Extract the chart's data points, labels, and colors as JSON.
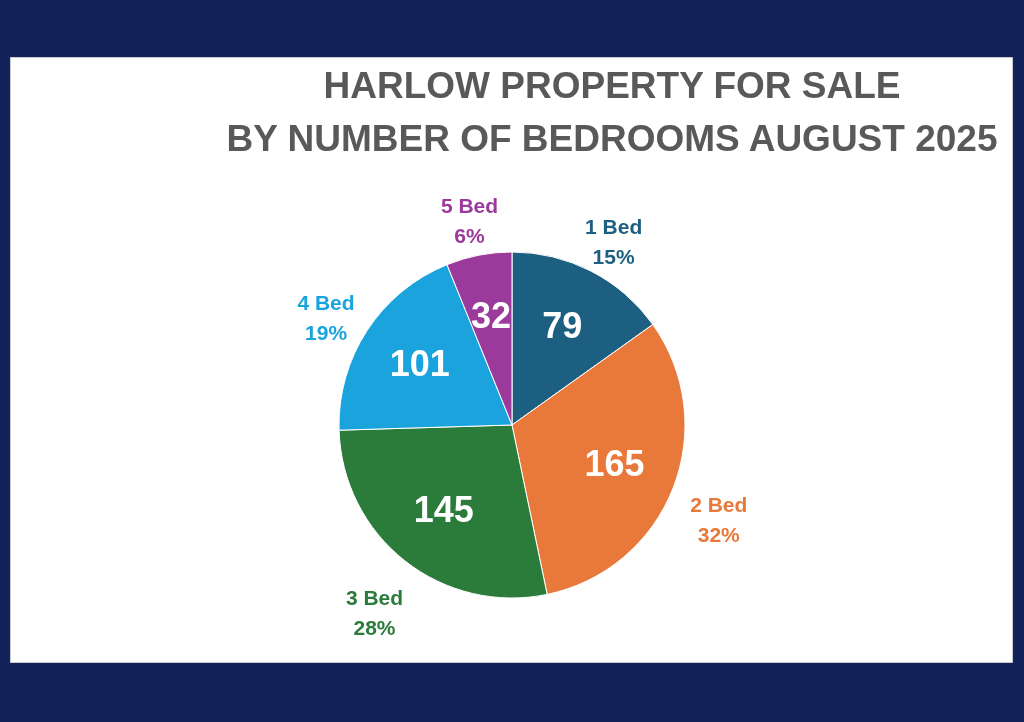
{
  "chart_data": {
    "type": "pie",
    "title": "HARLOW PROPERTY FOR SALE\nBY NUMBER OF BEDROOMS AUGUST 2025",
    "categories": [
      "1 Bed",
      "2 Bed",
      "3 Bed",
      "4 Bed",
      "5 Bed"
    ],
    "values": [
      79,
      165,
      145,
      101,
      32
    ],
    "colors": [
      "#1d5f80",
      "#e8793a",
      "#2b7b3b",
      "#1aa3dc",
      "#9c3a9c"
    ],
    "annotations": [
      "15%",
      "32%",
      "28%",
      "19%",
      "6%"
    ],
    "data_labels": true,
    "legend": false
  }
}
